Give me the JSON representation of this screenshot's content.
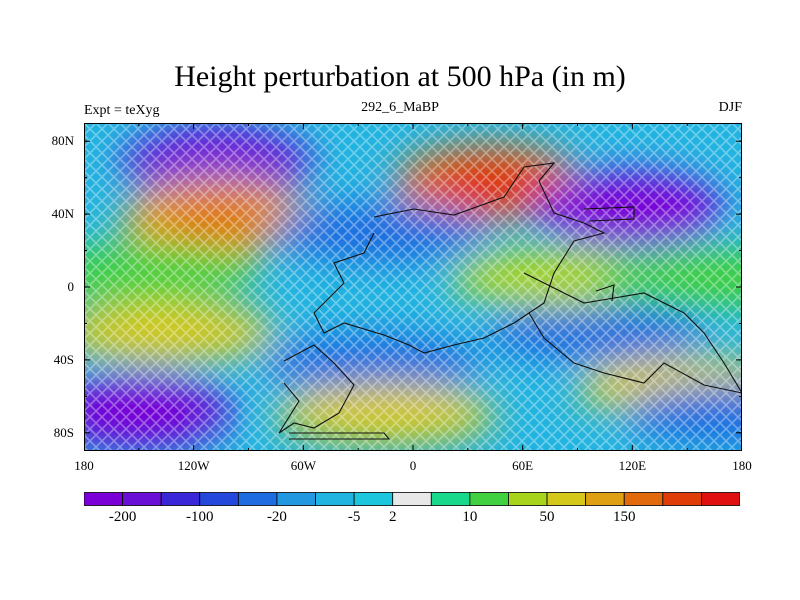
{
  "chart_data": {
    "type": "heatmap",
    "title": "Height perturbation at 500 hPa (in m)",
    "subtitle_center": "292_6_MaBP",
    "subtitle_left": "Expt = teXyg",
    "subtitle_right": "DJF",
    "x_ticks": [
      "180",
      "120W",
      "60W",
      "0",
      "60E",
      "120E",
      "180"
    ],
    "x_tick_values": [
      -180,
      -120,
      -60,
      0,
      60,
      120,
      180
    ],
    "y_ticks": [
      "80N",
      "40N",
      "0",
      "40S",
      "80S"
    ],
    "y_tick_values": [
      80,
      40,
      0,
      -40,
      -80
    ],
    "xlim": [
      -180,
      180
    ],
    "ylim": [
      -90,
      90
    ],
    "colorbar": {
      "colors": [
        "#7b00d8",
        "#6a10d6",
        "#3a28d8",
        "#2448dc",
        "#1e6ce0",
        "#2298e0",
        "#22b4e0",
        "#1cc6dc",
        "#e8e8e8",
        "#18d88c",
        "#40d040",
        "#a8d41c",
        "#d4c81a",
        "#e0a014",
        "#e06a0c",
        "#e03c08",
        "#e01010"
      ],
      "labels": [
        "-200",
        "-100",
        "-20",
        "-5",
        "2",
        "10",
        "50",
        "150"
      ],
      "label_after_box": [
        1,
        3,
        5,
        7,
        8,
        10,
        12,
        14
      ]
    },
    "anomaly_centers": [
      {
        "lon": -107,
        "lat": 67,
        "value": -150
      },
      {
        "lon": -107,
        "lat": 38,
        "value": 100
      },
      {
        "lon": 42,
        "lat": 57,
        "value": 150
      },
      {
        "lon": 118,
        "lat": 42,
        "value": -200
      },
      {
        "lon": -18,
        "lat": 30,
        "value": -30
      },
      {
        "lon": 100,
        "lat": -25,
        "value": -30
      },
      {
        "lon": -145,
        "lat": 8,
        "value": 8
      },
      {
        "lon": -135,
        "lat": -25,
        "value": 30
      },
      {
        "lon": 80,
        "lat": 5,
        "value": 15
      },
      {
        "lon": -22,
        "lat": -42,
        "value": -40
      },
      {
        "lon": -150,
        "lat": -68,
        "value": -150
      },
      {
        "lon": -15,
        "lat": -70,
        "value": 50
      },
      {
        "lon": 150,
        "lat": -55,
        "value": 30
      },
      {
        "lon": 175,
        "lat": -70,
        "value": -30
      },
      {
        "lon": 160,
        "lat": 5,
        "value": 8
      }
    ]
  }
}
